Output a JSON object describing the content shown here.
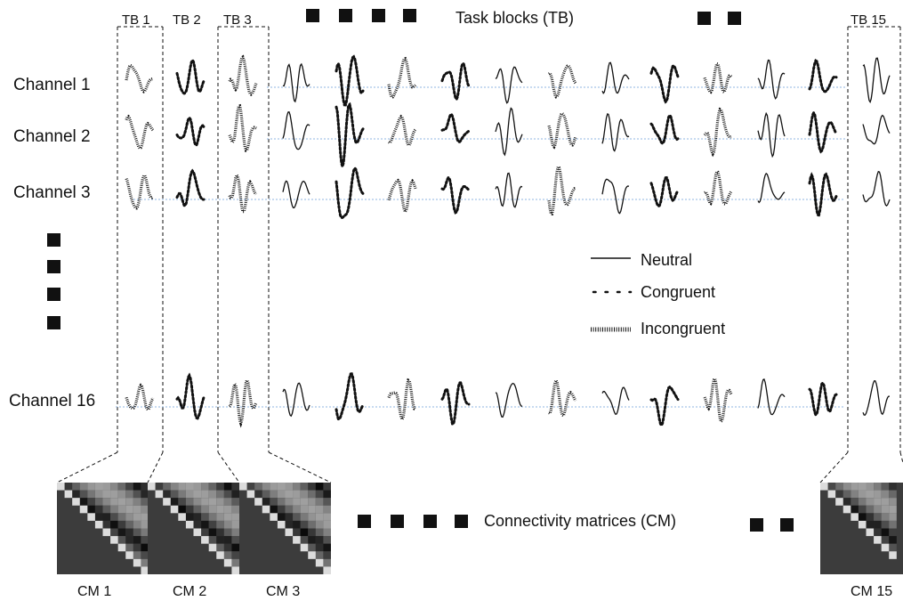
{
  "figure": {
    "header_label": "Task blocks (TB)",
    "cm_label": "Connectivity matrices (CM)",
    "tb_labels": [
      "TB 1",
      "TB 2",
      "TB 3",
      "TB 15"
    ],
    "cm_labels": [
      "CM 1",
      "CM 2",
      "CM 3",
      "CM 15"
    ],
    "channels": [
      "Channel 1",
      "Channel 2",
      "Channel 3",
      "Channel 16"
    ],
    "legend": [
      {
        "label": "Neutral",
        "style": "solid"
      },
      {
        "label": "Congruent",
        "style": "dotted"
      },
      {
        "label": "Incongruent",
        "style": "hatched"
      }
    ],
    "block_conditions": [
      "incongruent",
      "congruent",
      "incongruent",
      "neutral",
      "congruent",
      "incongruent",
      "congruent",
      "neutral",
      "incongruent",
      "neutral",
      "congruent",
      "incongruent",
      "neutral",
      "congruent",
      "neutral"
    ],
    "colors": {
      "ink": "#111111",
      "baseline": "#8fb4e0",
      "matrix_bg": "#3c3c3c"
    }
  }
}
